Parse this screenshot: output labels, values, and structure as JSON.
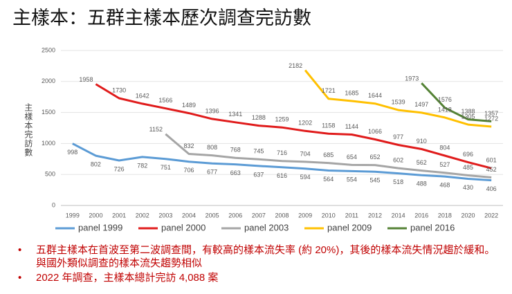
{
  "chart_data": {
    "type": "line",
    "title": "主樣本：五群主樣本歷次調查完訪數",
    "y_label": "主樣本完訪數",
    "categories": [
      "1999",
      "2000",
      "2001",
      "2002",
      "2003",
      "2004",
      "2005",
      "2006",
      "2007",
      "2008",
      "2009",
      "2010",
      "2011",
      "2012",
      "2014",
      "2016",
      "2018",
      "2020",
      "2022"
    ],
    "series": [
      {
        "name": "panel 1999",
        "color": "#5b9bd5",
        "values": [
          998,
          802,
          726,
          782,
          751,
          706,
          677,
          663,
          637,
          616,
          594,
          564,
          554,
          545,
          518,
          488,
          468,
          430,
          406
        ]
      },
      {
        "name": "panel 2000",
        "color": "#e01b1b",
        "values": [
          null,
          1958,
          1730,
          1642,
          1566,
          1489,
          1396,
          1341,
          1288,
          1259,
          1202,
          1158,
          1144,
          1066,
          977,
          910,
          804,
          696,
          601
        ]
      },
      {
        "name": "panel 2003",
        "color": "#a5a5a5",
        "values": [
          null,
          null,
          null,
          null,
          1152,
          832,
          808,
          768,
          745,
          716,
          704,
          685,
          654,
          652,
          602,
          562,
          527,
          485,
          452
        ]
      },
      {
        "name": "panel 2009",
        "color": "#ffc000",
        "values": [
          null,
          null,
          null,
          null,
          null,
          null,
          null,
          null,
          null,
          null,
          2182,
          1721,
          1685,
          1644,
          1539,
          1497,
          1418,
          1305,
          1272
        ]
      },
      {
        "name": "panel 2016",
        "color": "#548235",
        "values": [
          null,
          null,
          null,
          null,
          null,
          null,
          null,
          null,
          null,
          null,
          null,
          null,
          null,
          null,
          null,
          1973,
          1576,
          1388,
          1357
        ]
      }
    ],
    "ylim": [
      0,
      2500
    ],
    "yticks": [
      0,
      500,
      {
        "value": 1000,
        "label": "1000"
      },
      1500,
      2000,
      2500
    ],
    "grid": true,
    "legend": "bottom",
    "notes": [
      "五群主樣本在首波至第二波調查間，有較高的樣本流失率 (約 20%)，其後的樣本流失情況趨於緩和。與國外類似調查的樣本流失趨勢相似",
      "2022 年調查，主樣本總計完訪 4,088 案"
    ]
  }
}
